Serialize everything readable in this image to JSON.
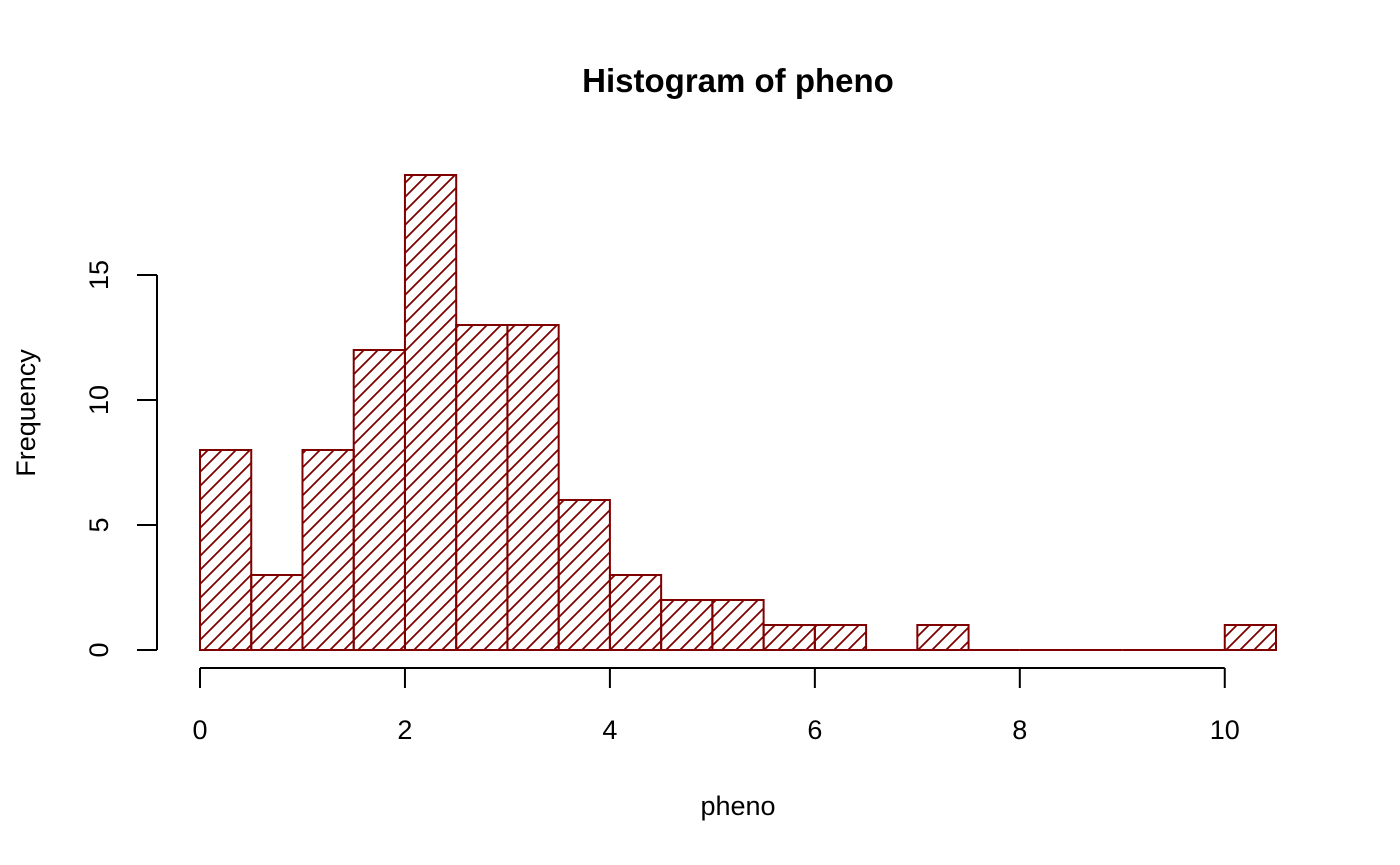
{
  "chart_data": {
    "type": "bar",
    "title": "Histogram of pheno",
    "xlabel": "pheno",
    "ylabel": "Frequency",
    "bin_edges": [
      0,
      0.5,
      1,
      1.5,
      2,
      2.5,
      3,
      3.5,
      4,
      4.5,
      5,
      5.5,
      6,
      6.5,
      7,
      7.5,
      8,
      8.5,
      9,
      9.5,
      10,
      10.5
    ],
    "values": [
      8,
      3,
      8,
      12,
      19,
      13,
      13,
      6,
      3,
      2,
      2,
      1,
      1,
      0,
      1,
      0,
      0,
      0,
      0,
      0,
      1
    ],
    "xlim": [
      0,
      10.5
    ],
    "ylim": [
      0,
      19
    ],
    "x_ticks": [
      0,
      2,
      4,
      6,
      8,
      10
    ],
    "x_tick_labels": [
      "0",
      "2",
      "4",
      "6",
      "8",
      "10"
    ],
    "y_ticks": [
      0,
      5,
      10,
      15
    ],
    "y_tick_labels": [
      "0",
      "5",
      "10",
      "15"
    ],
    "bar_fill": "hatched",
    "bar_color": "#800000",
    "grid": false,
    "legend": "none"
  }
}
